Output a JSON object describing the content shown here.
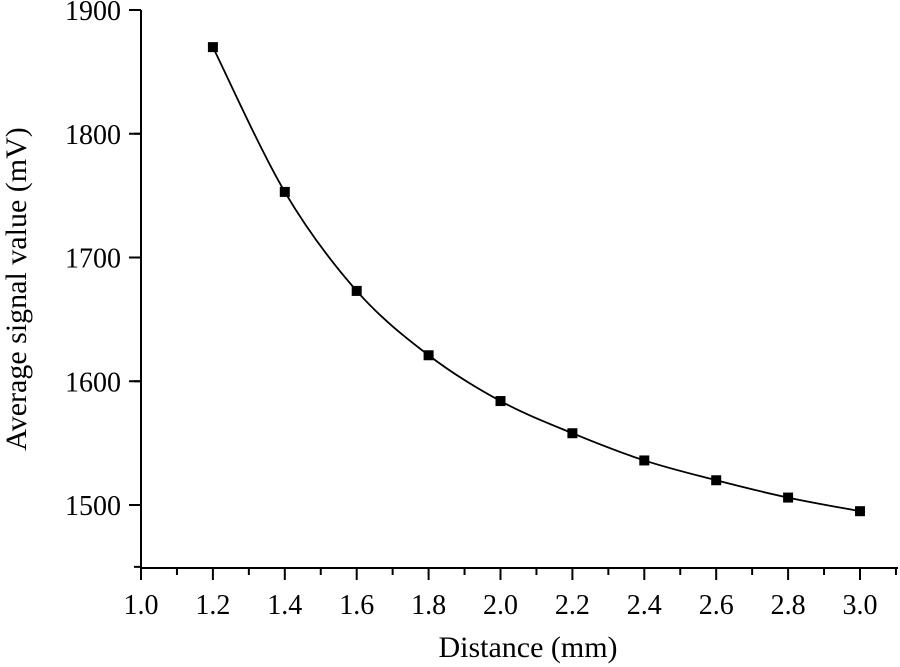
{
  "chart_data": {
    "type": "line",
    "title": "",
    "xlabel": "Distance (mm)",
    "ylabel": "Average signal value (mV)",
    "xlim": [
      1.0,
      3.1
    ],
    "ylim": [
      1450,
      1900
    ],
    "x_ticks": [
      "1.0",
      "1.2",
      "1.4",
      "1.6",
      "1.8",
      "2.0",
      "2.2",
      "2.4",
      "2.6",
      "2.8",
      "3.0"
    ],
    "y_ticks": [
      "1500",
      "1600",
      "1700",
      "1800",
      "1900"
    ],
    "grid": false,
    "legend": "none",
    "marker": "square",
    "color": "#000000",
    "series": [
      {
        "x": [
          1.2,
          1.4,
          1.6,
          1.8,
          2.0,
          2.2,
          2.4,
          2.6,
          2.8,
          3.0
        ],
        "y": [
          1870,
          1753,
          1673,
          1621,
          1584,
          1558,
          1536,
          1520,
          1506,
          1495
        ]
      }
    ]
  }
}
